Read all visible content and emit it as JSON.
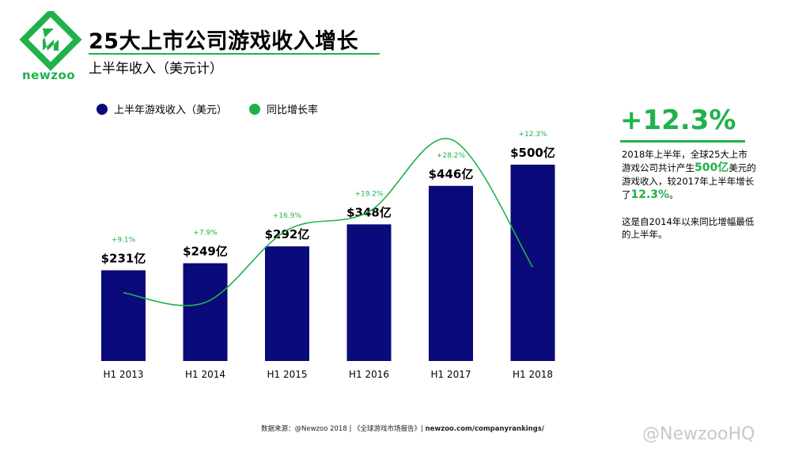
{
  "logo": {
    "text": "newzoo"
  },
  "header": {
    "title": "25大上市公司游戏收入增长",
    "subtitle": "上半年收入（美元计）"
  },
  "legend": {
    "revenue": "上半年游戏收入（美元）",
    "growth": "同比增长率"
  },
  "colors": {
    "bar": "#0a0a7a",
    "line": "#1fb24a"
  },
  "chart_data": {
    "type": "bar",
    "categories": [
      "H1 2013",
      "H1 2014",
      "H1 2015",
      "H1 2016",
      "H1 2017",
      "H1 2018"
    ],
    "series": [
      {
        "name": "上半年游戏收入（美元）",
        "values": [
          231,
          249,
          292,
          348,
          446,
          500
        ],
        "labels": [
          "$231亿",
          "$249亿",
          "$292亿",
          "$348亿",
          "$446亿",
          "$500亿"
        ]
      },
      {
        "name": "同比增长率",
        "values": [
          9.1,
          7.9,
          16.9,
          19.2,
          28.2,
          12.3
        ],
        "labels": [
          "+9.1%",
          "+7.9%",
          "+16.9%",
          "+19.2%",
          "+28.2%",
          "+12.3%"
        ]
      }
    ]
  },
  "side": {
    "headline": "+12.3%",
    "line1": "2018年上半年，全球25大上市游戏公司共计产生",
    "highlight1": "500亿",
    "line2": "美元的游戏收入，较2017年上半年增长了",
    "highlight2": "12.3%",
    "line2_end": "。",
    "para2": "这是自2014年以来同比增幅最低的上半年。"
  },
  "footer": {
    "source": "数据来源：@Newzoo 2018 | 《全球游戏市场报告》|",
    "link": "newzoo.com/companyrankings/"
  },
  "watermark": "@NewzooHQ"
}
